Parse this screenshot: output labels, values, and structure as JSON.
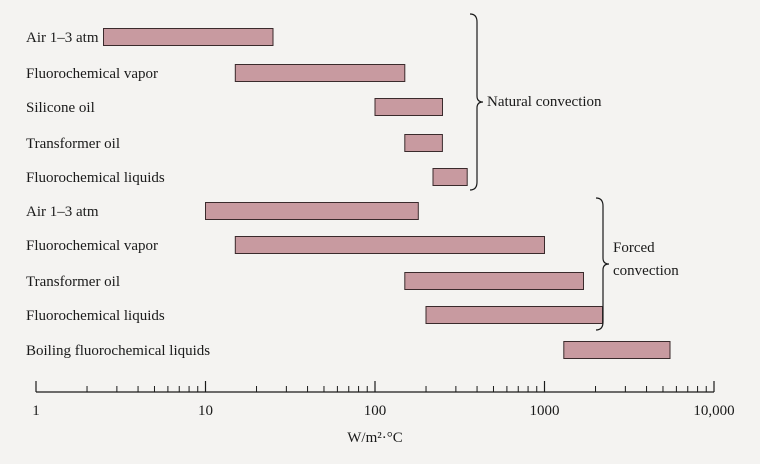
{
  "chart_data": {
    "type": "bar",
    "orientation": "horizontal-range",
    "x_scale": "log",
    "xlim": [
      1,
      10000
    ],
    "xlabel": "W/m²·°C",
    "x_tick_labels": [
      "1",
      "10",
      "100",
      "1000",
      "10,000"
    ],
    "x_tick_values": [
      1,
      10,
      100,
      1000,
      10000
    ],
    "bar_color": "#c89aa0",
    "bar_edge_color": "#3a2a2c",
    "groups": [
      {
        "label_lines": [
          "Natural convection"
        ],
        "items": [
          {
            "label": "Air 1–3 atm",
            "low": 2.5,
            "high": 25
          },
          {
            "label": "Fluorochemical vapor",
            "low": 15,
            "high": 150
          },
          {
            "label": "Silicone oil",
            "low": 100,
            "high": 250
          },
          {
            "label": "Transformer oil",
            "low": 150,
            "high": 250
          },
          {
            "label": "Fluorochemical liquids",
            "low": 220,
            "high": 350
          }
        ]
      },
      {
        "label_lines": [
          "Forced",
          "convection"
        ],
        "items": [
          {
            "label": "Air 1–3 atm",
            "low": 10,
            "high": 180
          },
          {
            "label": "Fluorochemical vapor",
            "low": 15,
            "high": 1000
          },
          {
            "label": "Transformer oil",
            "low": 150,
            "high": 1700
          },
          {
            "label": "Fluorochemical liquids",
            "low": 200,
            "high": 2200
          }
        ]
      }
    ],
    "extra_items": [
      {
        "label": "Boiling fluorochemical liquids",
        "low": 1300,
        "high": 5500
      }
    ]
  }
}
